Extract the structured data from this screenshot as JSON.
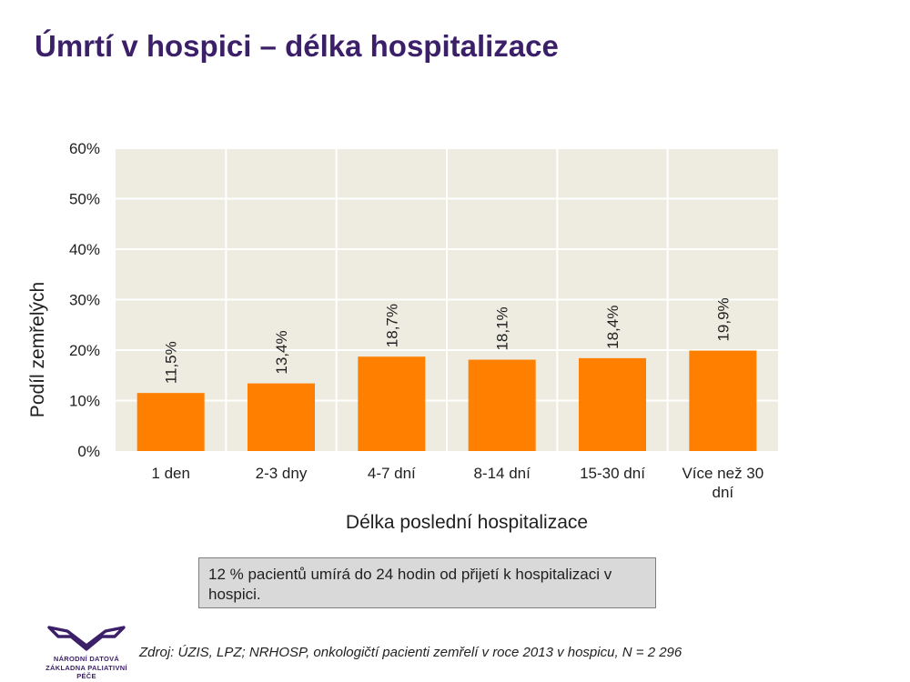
{
  "title": "Úmrtí v hospici – délka hospitalizace",
  "chart_data": {
    "type": "bar",
    "categories": [
      "1 den",
      "2-3 dny",
      "4-7 dní",
      "8-14 dní",
      "15-30 dní",
      "Více než 30 dní"
    ],
    "values": [
      11.5,
      13.4,
      18.7,
      18.1,
      18.4,
      19.9
    ],
    "value_labels": [
      "11,5%",
      "13,4%",
      "18,7%",
      "18,1%",
      "18,4%",
      "19,9%"
    ],
    "xlabel": "Délka poslední hospitalizace",
    "ylabel": "Podíl zemřelých",
    "ylim": [
      0,
      60
    ],
    "yticks": [
      0,
      10,
      20,
      30,
      40,
      50,
      60
    ],
    "ytick_labels": [
      "0%",
      "10%",
      "20%",
      "30%",
      "40%",
      "50%",
      "60%"
    ],
    "grid": true,
    "bar_color": "#ff8000",
    "plot_background": "#eeece1"
  },
  "note": "12 % pacientů umírá do 24 hodin od přijetí k hospitalizaci v hospici.",
  "source": "Zdroj: ÚZIS, LPZ; NRHOSP, onkologičtí pacienti zemřelí v roce 2013 v hospicu, N = 2 296",
  "logo": {
    "line1": "NÁRODNÍ DATOVÁ",
    "line2": "ZÁKLADNA PALIATIVNÍ PÉČE",
    "color": "#3b1f68"
  }
}
